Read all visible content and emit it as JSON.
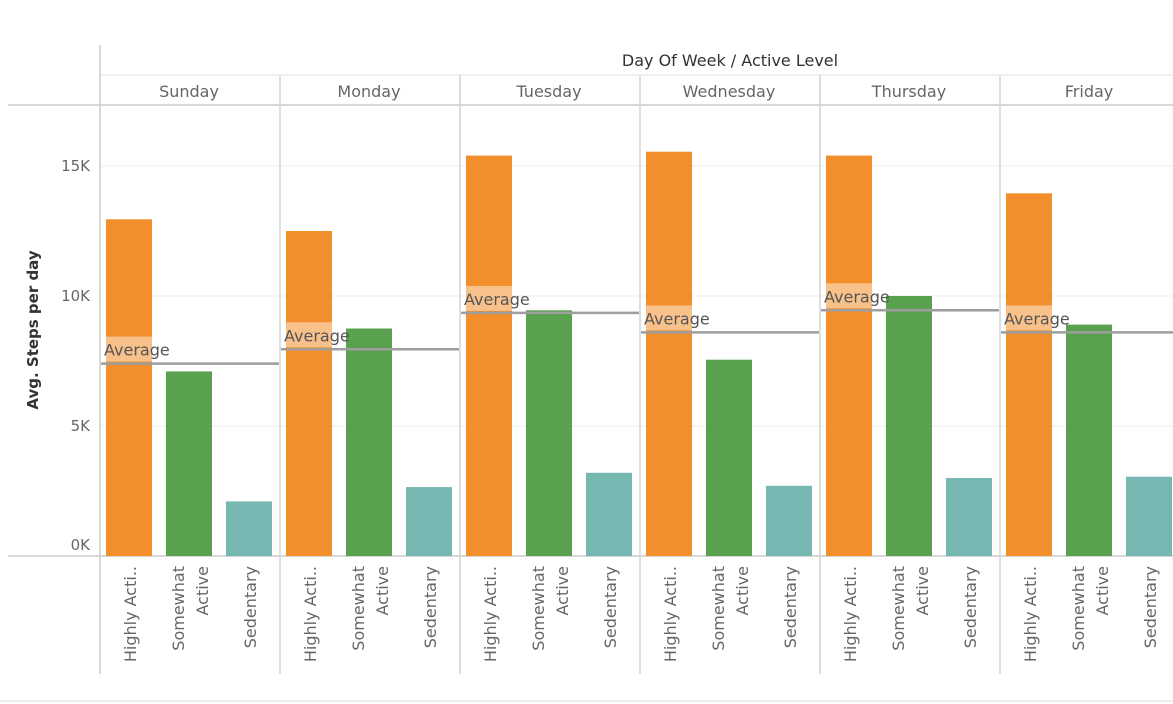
{
  "chart_data": {
    "type": "bar",
    "title": "Day Of Week / Active Level",
    "ylabel": "Avg. Steps per day",
    "ylim": [
      0,
      17000
    ],
    "yticks": [
      {
        "value": 0,
        "label": "0K"
      },
      {
        "value": 5000,
        "label": "5K"
      },
      {
        "value": 10000,
        "label": "10K"
      },
      {
        "value": 15000,
        "label": "15K"
      }
    ],
    "categories": [
      "Sunday",
      "Monday",
      "Tuesday",
      "Wednesday",
      "Thursday",
      "Friday"
    ],
    "sub_categories": [
      "Highly Acti..",
      "Somewhat Active",
      "Sedentary"
    ],
    "series": [
      {
        "name": "Highly Active",
        "color": "#f28e2b",
        "values": [
          12950,
          12500,
          15400,
          15550,
          15400,
          13950
        ]
      },
      {
        "name": "Somewhat Active",
        "color": "#59a14f",
        "values": [
          7100,
          8750,
          9450,
          7550,
          10000,
          8900
        ]
      },
      {
        "name": "Sedentary",
        "color": "#76b7b2",
        "values": [
          2100,
          2650,
          3200,
          2700,
          3000,
          3050
        ]
      }
    ],
    "reference_line": {
      "label": "Average",
      "values": [
        7400,
        7950,
        9350,
        8600,
        9450,
        8600
      ],
      "color": "#9e9e9e"
    },
    "grid": true
  }
}
